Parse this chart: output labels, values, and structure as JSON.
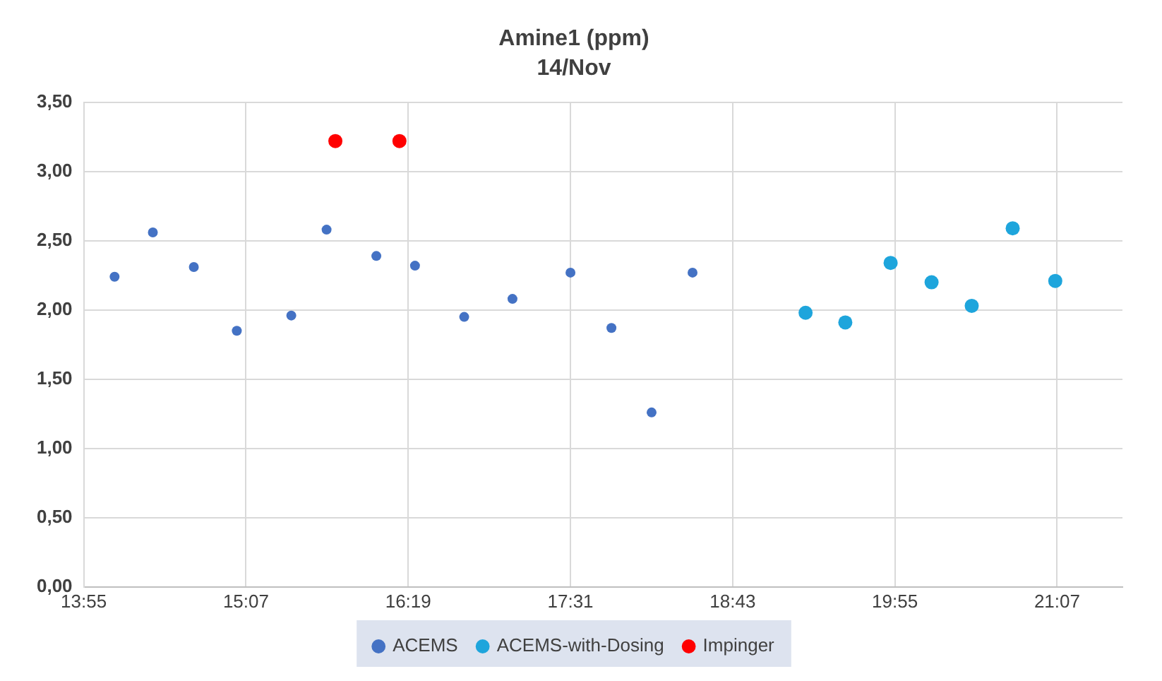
{
  "chart_data": {
    "type": "scatter",
    "title": "Amine1 (ppm)",
    "subtitle": "14/Nov",
    "xlim": [
      13.9167,
      21.6
    ],
    "xticks": [
      {
        "value": 13.9167,
        "label": "13:55"
      },
      {
        "value": 15.1167,
        "label": "15:07"
      },
      {
        "value": 16.3167,
        "label": "16:19"
      },
      {
        "value": 17.5167,
        "label": "17:31"
      },
      {
        "value": 18.7167,
        "label": "18:43"
      },
      {
        "value": 19.9167,
        "label": "19:55"
      },
      {
        "value": 21.1167,
        "label": "21:07"
      }
    ],
    "ylim": [
      0,
      3.5
    ],
    "yticks": [
      {
        "value": 0,
        "label": "0,00"
      },
      {
        "value": 0.5,
        "label": "0,50"
      },
      {
        "value": 1,
        "label": "1,00"
      },
      {
        "value": 1.5,
        "label": "1,50"
      },
      {
        "value": 2,
        "label": "2,00"
      },
      {
        "value": 2.5,
        "label": "2,50"
      },
      {
        "value": 3,
        "label": "3,00"
      },
      {
        "value": 3.5,
        "label": "3,50"
      }
    ],
    "grid": true,
    "legend": "bottom",
    "marker": "circle",
    "series": [
      {
        "name": "ACEMS",
        "color": "#4472c4",
        "x": [
          14.145,
          14.428,
          14.731,
          15.049,
          15.452,
          15.713,
          16.081,
          16.367,
          16.731,
          17.088,
          17.517,
          17.82,
          18.117,
          18.42
        ],
        "values": [
          2.24,
          2.56,
          2.31,
          1.85,
          1.96,
          2.58,
          2.39,
          2.32,
          1.95,
          2.08,
          2.27,
          1.87,
          1.26,
          2.27
        ]
      },
      {
        "name": "ACEMS-with-Dosing",
        "color": "#1ea5dc",
        "x": [
          19.256,
          19.55,
          19.885,
          20.188,
          20.485,
          20.788,
          21.103
        ],
        "values": [
          1.98,
          1.91,
          2.34,
          2.2,
          2.03,
          2.59,
          2.21
        ]
      },
      {
        "name": "Impinger",
        "color": "#ff0000",
        "x": [
          15.778,
          16.252
        ],
        "values": [
          3.22,
          3.22
        ]
      }
    ]
  }
}
